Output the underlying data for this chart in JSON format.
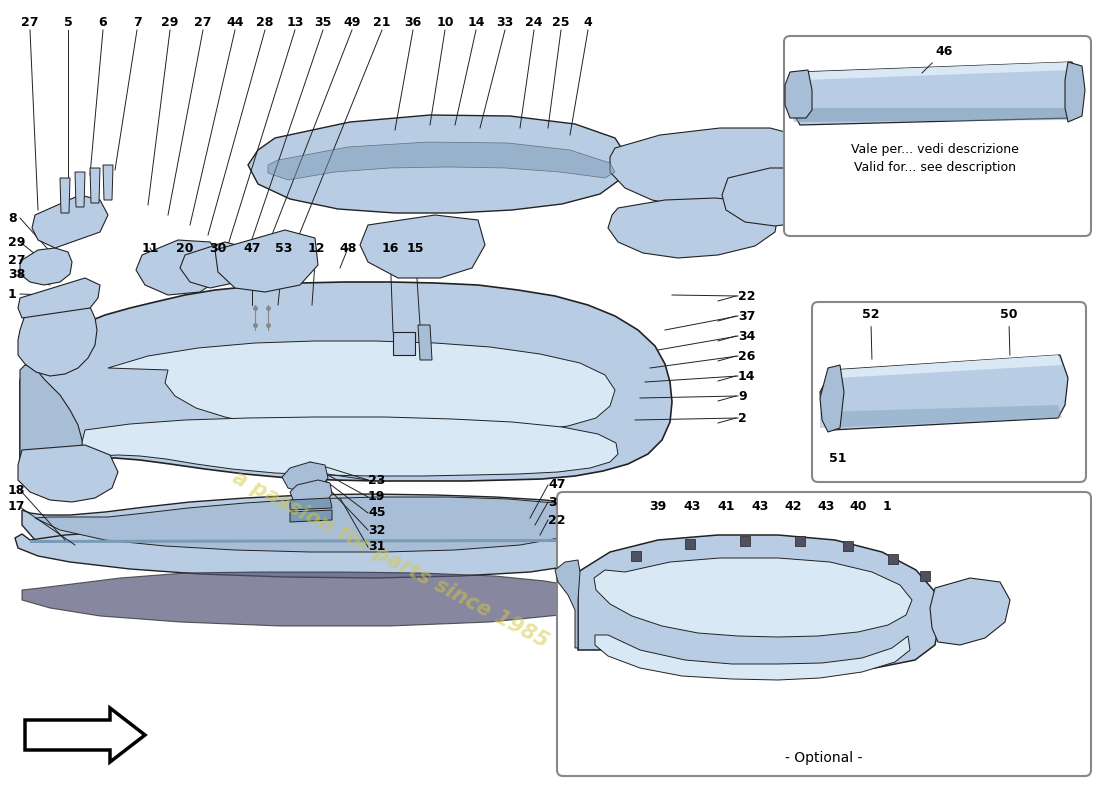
{
  "bg_color": "#ffffff",
  "part_color": "#b8cce4",
  "part_color2": "#a8bdd6",
  "part_dark": "#7a9ab5",
  "part_light": "#d8e8f4",
  "line_color": "#222222",
  "watermark_text": "a passion for parts since 1985",
  "watermark_color": "#d4c840",
  "watermark_alpha": 0.5,
  "inset1_text": "Vale per... vedi descrizione\nValid for... see description",
  "optional_text": "- Optional -",
  "top_labels_left": [
    [
      "27",
      30,
      22
    ],
    [
      "5",
      68,
      22
    ],
    [
      "6",
      103,
      22
    ],
    [
      "7",
      137,
      22
    ],
    [
      "29",
      170,
      22
    ],
    [
      "27",
      203,
      22
    ],
    [
      "44",
      235,
      22
    ],
    [
      "28",
      265,
      22
    ],
    [
      "13",
      295,
      22
    ],
    [
      "35",
      323,
      22
    ],
    [
      "49",
      352,
      22
    ],
    [
      "21",
      382,
      22
    ]
  ],
  "top_labels_right": [
    [
      "36",
      413,
      22
    ],
    [
      "10",
      445,
      22
    ],
    [
      "14",
      476,
      22
    ],
    [
      "33",
      505,
      22
    ],
    [
      "24",
      534,
      22
    ],
    [
      "25",
      561,
      22
    ],
    [
      "4",
      588,
      22
    ]
  ],
  "left_labels": [
    [
      "8",
      8,
      218
    ],
    [
      "29",
      8,
      242
    ],
    [
      "27",
      8,
      260
    ],
    [
      "38",
      8,
      275
    ],
    [
      "1",
      8,
      294
    ]
  ],
  "right_labels": [
    [
      "22",
      738,
      296
    ],
    [
      "37",
      738,
      316
    ],
    [
      "34",
      738,
      336
    ],
    [
      "26",
      738,
      356
    ],
    [
      "14",
      738,
      376
    ],
    [
      "9",
      738,
      396
    ],
    [
      "2",
      738,
      418
    ]
  ],
  "top_bumper_labels": [
    [
      "11",
      150,
      248
    ],
    [
      "20",
      185,
      248
    ],
    [
      "30",
      218,
      248
    ],
    [
      "47",
      252,
      248
    ],
    [
      "53",
      284,
      248
    ],
    [
      "12",
      316,
      248
    ],
    [
      "48",
      348,
      248
    ],
    [
      "16",
      390,
      248
    ],
    [
      "15",
      415,
      248
    ]
  ],
  "bottom_left_labels": [
    [
      "18",
      8,
      490
    ],
    [
      "17",
      8,
      507
    ]
  ],
  "bottom_mid_labels": [
    [
      "23",
      368,
      480
    ],
    [
      "19",
      368,
      497
    ],
    [
      "45",
      368,
      513
    ],
    [
      "32",
      368,
      530
    ],
    [
      "31",
      368,
      547
    ]
  ],
  "bottom_right_labels": [
    [
      "47",
      548,
      485
    ],
    [
      "3",
      548,
      502
    ],
    [
      "22",
      548,
      520
    ]
  ],
  "inset3_labels": [
    [
      "39",
      658,
      507
    ],
    [
      "43",
      692,
      507
    ],
    [
      "41",
      726,
      507
    ],
    [
      "43",
      760,
      507
    ],
    [
      "42",
      793,
      507
    ],
    [
      "43",
      826,
      507
    ],
    [
      "40",
      858,
      507
    ],
    [
      "1",
      887,
      507
    ]
  ]
}
